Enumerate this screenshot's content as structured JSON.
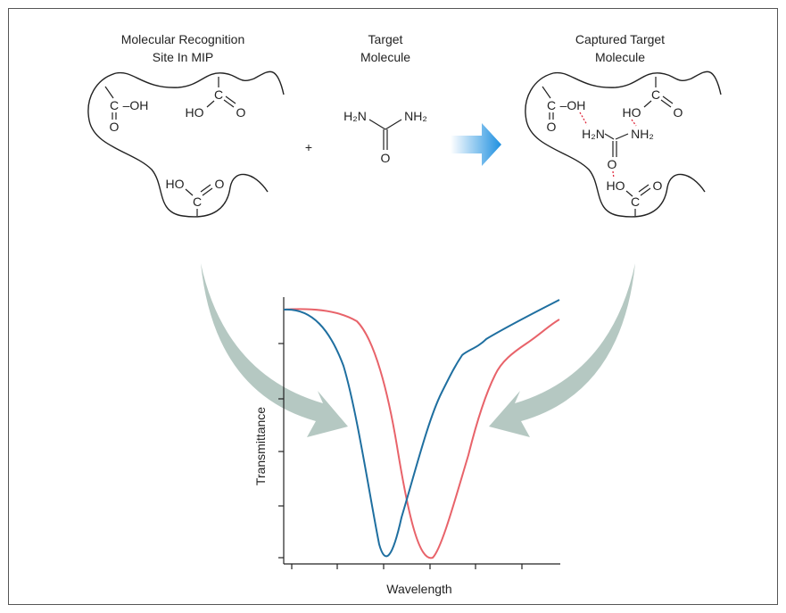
{
  "titles": {
    "mip": [
      "Molecular Recognition",
      "Site In MIP"
    ],
    "target": [
      "Target",
      "Molecule"
    ],
    "captured": [
      "Captured Target",
      "Molecule"
    ]
  },
  "mip": {
    "group_1": [
      "C",
      "–OH",
      "O"
    ],
    "group_2": [
      "HO",
      "C",
      "O"
    ],
    "group_3": [
      "HO",
      "C",
      "O"
    ]
  },
  "target": {
    "plus": "+",
    "atoms": [
      "H₂N",
      "NH₂",
      "O"
    ]
  },
  "captured": {
    "group_1": [
      "C",
      "–OH",
      "O"
    ],
    "group_2": [
      "HO",
      "C",
      "O"
    ],
    "urea": [
      "H₂N",
      "NH₂",
      "O"
    ],
    "group_3": [
      "HO",
      "C",
      "O"
    ]
  },
  "plot": {
    "y_label": "Transmittance",
    "x_label": "Wavelength"
  }
}
